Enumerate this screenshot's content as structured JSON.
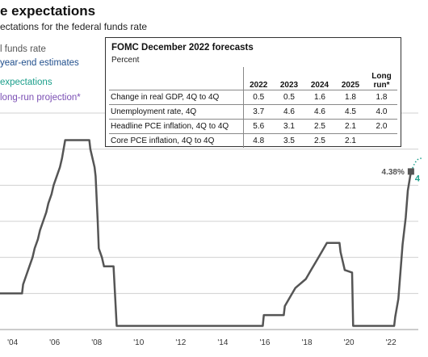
{
  "header": {
    "title": "e expectations",
    "subtitle": "ectations for the federal funds rate"
  },
  "legend": [
    {
      "label": "l funds rate",
      "color": "#555555"
    },
    {
      "label": "year-end estimates",
      "color": "#1f4e8c"
    },
    {
      "label": " expectations",
      "color": "#1a9e8a"
    },
    {
      "label": "long-run projection*",
      "color": "#7b4fb4"
    }
  ],
  "fomc_table": {
    "title": "FOMC December 2022 forecasts",
    "unit": "Percent",
    "columns": [
      "2022",
      "2023",
      "2024",
      "2025",
      "Long run*"
    ],
    "rows": [
      {
        "label": "Change in real GDP, 4Q to 4Q",
        "values": [
          "0.5",
          "0.5",
          "1.6",
          "1.8",
          "1.8"
        ]
      },
      {
        "label": "Unemployment rate, 4Q",
        "values": [
          "3.7",
          "4.6",
          "4.6",
          "4.5",
          "4.0"
        ]
      },
      {
        "label": "Headline PCE inflation, 4Q to 4Q",
        "values": [
          "5.6",
          "3.1",
          "2.5",
          "2.1",
          "2.0"
        ]
      },
      {
        "label": "Core PCE inflation, 4Q to 4Q",
        "values": [
          "4.8",
          "3.5",
          "2.5",
          "2.1",
          ""
        ]
      }
    ]
  },
  "chart_data": {
    "type": "line",
    "xlabel": "",
    "ylabel": "",
    "grid": true,
    "x_tick_labels": [
      "'04",
      "'06",
      "'08",
      "'10",
      "'12",
      "'14",
      "'16",
      "'18",
      "'20",
      "'22"
    ],
    "x_tick_years": [
      2004,
      2006,
      2008,
      2010,
      2012,
      2014,
      2016,
      2018,
      2020,
      2022
    ],
    "xlim": [
      2003.4,
      2023.3
    ],
    "ylim": [
      0,
      6
    ],
    "series": [
      {
        "color": "#555555",
        "x": [
          2003.4,
          2004.45,
          2004.5,
          2004.65,
          2004.8,
          2004.95,
          2005.05,
          2005.2,
          2005.3,
          2005.45,
          2005.6,
          2005.7,
          2005.85,
          2005.95,
          2006.1,
          2006.25,
          2006.35,
          2006.5,
          2007.65,
          2007.7,
          2007.8,
          2007.9,
          2007.95,
          2008.05,
          2008.1,
          2008.25,
          2008.35,
          2008.8,
          2008.95,
          2015.9,
          2015.95,
          2016.9,
          2016.95,
          2017.2,
          2017.45,
          2017.95,
          2018.2,
          2018.45,
          2018.7,
          2018.95,
          2019.55,
          2019.6,
          2019.7,
          2019.8,
          2020.15,
          2020.2,
          2022.15,
          2022.2,
          2022.35,
          2022.45,
          2022.55,
          2022.7,
          2022.8,
          2022.95
        ],
        "y": [
          1.0,
          1.0,
          1.25,
          1.5,
          1.75,
          2.0,
          2.25,
          2.5,
          2.75,
          3.0,
          3.25,
          3.5,
          3.75,
          4.0,
          4.25,
          4.5,
          4.75,
          5.25,
          5.25,
          5.0,
          4.75,
          4.5,
          4.25,
          3.0,
          2.25,
          2.0,
          1.75,
          1.75,
          0.1,
          0.1,
          0.4,
          0.4,
          0.65,
          0.9,
          1.15,
          1.4,
          1.65,
          1.9,
          2.15,
          2.4,
          2.4,
          2.15,
          1.9,
          1.65,
          1.58,
          0.1,
          0.1,
          0.35,
          0.85,
          1.6,
          2.35,
          3.1,
          3.85,
          4.38
        ]
      }
    ],
    "annotations": [
      {
        "text": "4.38%",
        "x": 2022.95,
        "y": 4.38,
        "color": "#555555"
      }
    ]
  }
}
